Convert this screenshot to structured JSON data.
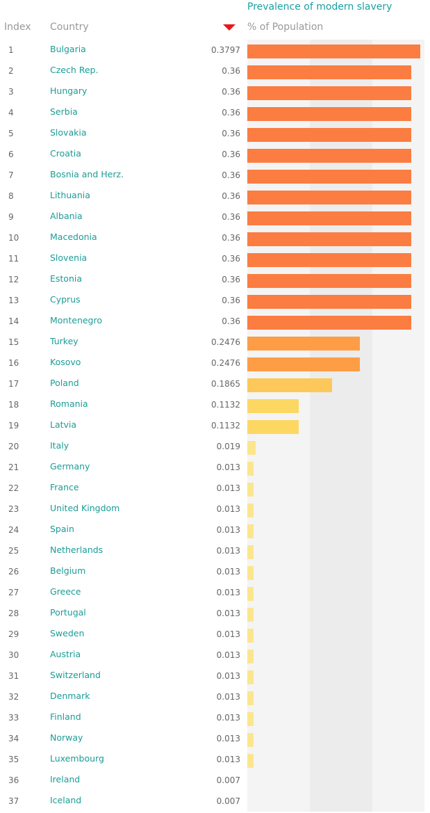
{
  "header": {
    "title": "Prevalence of modern slavery",
    "index_label": "Index",
    "country_label": "Country",
    "measure_label": "% of Population",
    "sort_icon": "triangle-down-icon"
  },
  "colors": {
    "title": "#1aa0a0",
    "country_text": "#1a9c96",
    "sort_arrow": "#e41a1c",
    "band_light": "#f4f4f4",
    "band_dark": "#ececec",
    "bar_high": "#fb7d41",
    "bar_mid_high": "#fd9d45",
    "bar_mid": "#fdc85a",
    "bar_low": "#fcd863",
    "bar_very_low": "#fbe68d"
  },
  "chart_data": {
    "type": "bar",
    "orientation": "horizontal",
    "title": "Prevalence of modern slavery",
    "xlabel": "% of Population",
    "xlim": [
      0,
      0.3797
    ],
    "categories": [
      "Bulgaria",
      "Czech Rep.",
      "Hungary",
      "Serbia",
      "Slovakia",
      "Croatia",
      "Bosnia and Herz.",
      "Lithuania",
      "Albania",
      "Macedonia",
      "Slovenia",
      "Estonia",
      "Cyprus",
      "Montenegro",
      "Turkey",
      "Kosovo",
      "Poland",
      "Romania",
      "Latvia",
      "Italy",
      "Germany",
      "France",
      "United Kingdom",
      "Spain",
      "Netherlands",
      "Belgium",
      "Greece",
      "Portugal",
      "Sweden",
      "Austria",
      "Switzerland",
      "Denmark",
      "Finland",
      "Norway",
      "Luxembourg",
      "Ireland",
      "Iceland"
    ],
    "values": [
      0.3797,
      0.36,
      0.36,
      0.36,
      0.36,
      0.36,
      0.36,
      0.36,
      0.36,
      0.36,
      0.36,
      0.36,
      0.36,
      0.36,
      0.2476,
      0.2476,
      0.1865,
      0.1132,
      0.1132,
      0.019,
      0.013,
      0.013,
      0.013,
      0.013,
      0.013,
      0.013,
      0.013,
      0.013,
      0.013,
      0.013,
      0.013,
      0.013,
      0.013,
      0.013,
      0.013,
      0.007,
      0.007
    ],
    "value_labels": [
      "0.3797",
      "0.36",
      "0.36",
      "0.36",
      "0.36",
      "0.36",
      "0.36",
      "0.36",
      "0.36",
      "0.36",
      "0.36",
      "0.36",
      "0.36",
      "0.36",
      "0.2476",
      "0.2476",
      "0.1865",
      "0.1132",
      "0.1132",
      "0.019",
      "0.013",
      "0.013",
      "0.013",
      "0.013",
      "0.013",
      "0.013",
      "0.013",
      "0.013",
      "0.013",
      "0.013",
      "0.013",
      "0.013",
      "0.013",
      "0.013",
      "0.013",
      "0.007",
      "0.007"
    ],
    "sorted": "descending",
    "grid": false
  }
}
